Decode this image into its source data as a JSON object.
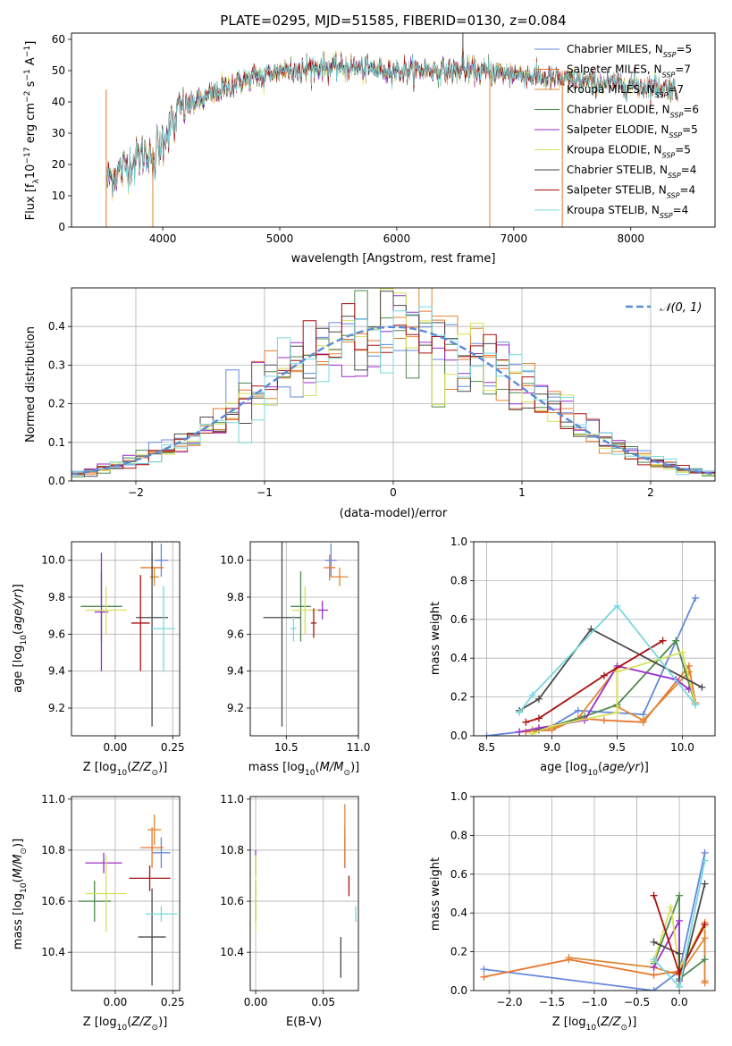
{
  "figure": {
    "series_names": [
      "Chabrier MILES",
      "Salpeter MILES",
      "Kroupa MILES",
      "Chabrier ELODIE",
      "Salpeter ELODIE",
      "Kroupa ELODIE",
      "Chabrier STELIB",
      "Salpeter STELIB",
      "Kroupa STELIB"
    ],
    "nssp": [
      5,
      7,
      7,
      6,
      5,
      5,
      4,
      4,
      4
    ],
    "colors": {
      "Chabrier MILES": "#6688dd",
      "Salpeter MILES": "#e8752d",
      "Kroupa MILES": "#dd8833",
      "Chabrier ELODIE": "#4d8a4d",
      "Salpeter ELODIE": "#9a2ec8",
      "Kroupa ELODIE": "#d6e05a",
      "Chabrier STELIB": "#4a4a4a",
      "Salpeter STELIB": "#aa1111",
      "Kroupa STELIB": "#77d8dd"
    }
  },
  "chart_data": [
    {
      "id": "spectrum",
      "type": "line",
      "title": "PLATE=0295, MJD=51585, FIBERID=0130, z=0.084",
      "xlabel": "wavelength [Angstrom, rest frame]",
      "ylabel": "Flux [f",
      "xlim": [
        3220,
        8720
      ],
      "ylim": [
        0,
        62
      ],
      "xticks": [
        4000,
        5000,
        6000,
        7000,
        8000
      ],
      "yticks": [
        0,
        10,
        20,
        30,
        40,
        50,
        60
      ],
      "continuum": {
        "x": [
          3520,
          3700,
          3900,
          4000,
          4150,
          4300,
          4500,
          4700,
          5000,
          5300,
          5600,
          6000,
          6300,
          6600,
          7000,
          7400,
          7800,
          8200,
          8400
        ],
        "y": [
          15,
          20,
          25,
          28,
          38,
          40,
          44,
          47,
          50,
          51,
          51,
          50,
          50,
          50,
          49,
          47,
          46,
          45,
          44
        ]
      },
      "spikes": [
        {
          "x": 3517,
          "y": 0,
          "series": "Salpeter MILES"
        },
        {
          "x": 3915,
          "y": 0,
          "series": "Kroupa MILES"
        },
        {
          "x": 6795,
          "y": 0,
          "series": "Kroupa MILES"
        },
        {
          "x": 7415,
          "y": 0,
          "series": "Salpeter MILES"
        },
        {
          "x": 6565,
          "y": 62,
          "series": "Chabrier STELIB"
        }
      ]
    },
    {
      "id": "residuals",
      "type": "histogram",
      "xlabel": "(data-model)/error",
      "ylabel": "Normed distribution",
      "xlim": [
        -2.5,
        2.5
      ],
      "ylim": [
        0,
        0.5
      ],
      "xticks": [
        -2,
        -1,
        0,
        1,
        2
      ],
      "yticks": [
        0.0,
        0.1,
        0.2,
        0.3,
        0.4
      ],
      "bin_edges": [
        -2.5,
        -2.4,
        -2.3,
        -2.2,
        -2.1,
        -2.0,
        -1.9,
        -1.8,
        -1.7,
        -1.6,
        -1.5,
        -1.4,
        -1.3,
        -1.2,
        -1.1,
        -1.0,
        -0.9,
        -0.8,
        -0.7,
        -0.6,
        -0.5,
        -0.4,
        -0.3,
        -0.2,
        -0.1,
        0.0,
        0.1,
        0.2,
        0.3,
        0.4,
        0.5,
        0.6,
        0.7,
        0.8,
        0.9,
        1.0,
        1.1,
        1.2,
        1.3,
        1.4,
        1.5,
        1.6,
        1.7,
        1.8,
        1.9,
        2.0,
        2.1,
        2.2,
        2.3,
        2.4,
        2.5
      ],
      "gaussian_label": "𝒩(0, 1)",
      "gaussian_color": "#5b8ad6"
    },
    {
      "id": "age_vs_Z",
      "type": "errorbar",
      "xlabel": "Z [log10(Z/Z⊙)]",
      "ylabel": "age  [log10(age/yr)]",
      "xlim": [
        -0.19,
        0.28
      ],
      "ylim": [
        9.05,
        10.1
      ],
      "xticks": [
        0.0,
        0.25
      ],
      "xticklabels": [
        "0.00",
        "0.25"
      ],
      "yticks": [
        9.2,
        9.4,
        9.6,
        9.8,
        10.0
      ],
      "points": [
        {
          "series": "Chabrier MILES",
          "x": 0.2,
          "y": 10.0,
          "xerr": 0.03,
          "yerr": 0.09
        },
        {
          "series": "Salpeter MILES",
          "x": 0.16,
          "y": 9.96,
          "xerr": 0.05,
          "yerr": 0.07
        },
        {
          "series": "Kroupa MILES",
          "x": 0.17,
          "y": 9.91,
          "xerr": 0.02,
          "yerr": 0.05
        },
        {
          "series": "Chabrier ELODIE",
          "x": -0.06,
          "y": 9.75,
          "xerr": 0.09,
          "yerr": 0.19
        },
        {
          "series": "Salpeter ELODIE",
          "x": -0.06,
          "y": 9.72,
          "xerr": 0.03,
          "yerr": 0.32
        },
        {
          "series": "Kroupa ELODIE",
          "x": -0.04,
          "y": 9.73,
          "xerr": 0.09,
          "yerr": 0.13
        },
        {
          "series": "Chabrier STELIB",
          "x": 0.16,
          "y": 9.69,
          "xerr": 0.07,
          "yerr": 0.59
        },
        {
          "series": "Salpeter STELIB",
          "x": 0.11,
          "y": 9.66,
          "xerr": 0.04,
          "yerr": 0.26
        },
        {
          "series": "Kroupa STELIB",
          "x": 0.21,
          "y": 9.63,
          "xerr": 0.05,
          "yerr": 0.23
        }
      ]
    },
    {
      "id": "age_vs_mass",
      "type": "errorbar",
      "xlabel": "mass [log10(M/M⊙)]",
      "ylabel": "",
      "xlim": [
        10.25,
        11.0
      ],
      "ylim": [
        9.05,
        10.1
      ],
      "xticks": [
        10.5,
        11.0
      ],
      "xticklabels": [
        "10.5",
        "11.0"
      ],
      "yticks": [
        9.2,
        9.4,
        9.6,
        9.8,
        10.0
      ],
      "points": [
        {
          "series": "Chabrier MILES",
          "x": 10.81,
          "y": 10.0,
          "xerr": 0.04,
          "yerr": 0.09
        },
        {
          "series": "Salpeter MILES",
          "x": 10.8,
          "y": 9.96,
          "xerr": 0.04,
          "yerr": 0.07
        },
        {
          "series": "Kroupa MILES",
          "x": 10.87,
          "y": 9.91,
          "xerr": 0.06,
          "yerr": 0.05
        },
        {
          "series": "Chabrier ELODIE",
          "x": 10.6,
          "y": 9.75,
          "xerr": 0.07,
          "yerr": 0.19
        },
        {
          "series": "Salpeter ELODIE",
          "x": 10.75,
          "y": 9.73,
          "xerr": 0.04,
          "yerr": 0.05
        },
        {
          "series": "Kroupa ELODIE",
          "x": 10.63,
          "y": 9.73,
          "xerr": 0.09,
          "yerr": 0.13
        },
        {
          "series": "Chabrier STELIB",
          "x": 10.47,
          "y": 9.69,
          "xerr": 0.13,
          "yerr": 0.59
        },
        {
          "series": "Salpeter STELIB",
          "x": 10.69,
          "y": 9.66,
          "xerr": 0.02,
          "yerr": 0.08
        },
        {
          "series": "Kroupa STELIB",
          "x": 10.55,
          "y": 9.63,
          "xerr": 0.02,
          "yerr": 0.07
        }
      ]
    },
    {
      "id": "weight_vs_age",
      "type": "line",
      "xlabel": "age  [log10(age/yr)]",
      "ylabel": "mass weight",
      "xlim": [
        8.4,
        10.25
      ],
      "ylim": [
        0,
        1
      ],
      "xticks": [
        8.5,
        9.0,
        9.5,
        10.0
      ],
      "xticklabels": [
        "8.5",
        "9.0",
        "9.5",
        "10.0"
      ],
      "yticks": [
        0.0,
        0.2,
        0.4,
        0.6,
        0.8,
        1.0
      ],
      "series": [
        {
          "name": "Chabrier MILES",
          "x": [
            8.5,
            8.75,
            9.0,
            9.2,
            9.7,
            10.1
          ],
          "y": [
            0.0,
            0.02,
            0.05,
            0.13,
            0.11,
            0.71
          ]
        },
        {
          "name": "Salpeter MILES",
          "x": [
            8.8,
            9.0,
            9.2,
            9.4,
            9.7,
            10.05,
            10.1
          ],
          "y": [
            0.02,
            0.03,
            0.09,
            0.08,
            0.07,
            0.36,
            0.17
          ]
        },
        {
          "name": "Kroupa MILES",
          "x": [
            8.85,
            9.0,
            9.2,
            9.5,
            9.5,
            9.7,
            10.05
          ],
          "y": [
            0.03,
            0.04,
            0.09,
            0.35,
            0.15,
            0.08,
            0.33
          ]
        },
        {
          "name": "Chabrier ELODIE",
          "x": [
            8.9,
            9.25,
            9.5,
            9.95,
            10.1
          ],
          "y": [
            0.03,
            0.1,
            0.16,
            0.49,
            0.16
          ]
        },
        {
          "name": "Salpeter ELODIE",
          "x": [
            8.75,
            8.9,
            9.25,
            9.5,
            9.95,
            10.05
          ],
          "y": [
            0.02,
            0.04,
            0.08,
            0.36,
            0.29,
            0.24
          ]
        },
        {
          "name": "Kroupa ELODIE",
          "x": [
            8.85,
            9.0,
            9.5,
            9.5,
            10.0,
            10.1
          ],
          "y": [
            0.01,
            0.05,
            0.12,
            0.33,
            0.43,
            0.16
          ]
        },
        {
          "name": "Chabrier STELIB",
          "x": [
            8.75,
            8.9,
            9.3,
            10.15
          ],
          "y": [
            0.13,
            0.19,
            0.55,
            0.25
          ]
        },
        {
          "name": "Salpeter STELIB",
          "x": [
            8.8,
            8.9,
            9.4,
            9.85
          ],
          "y": [
            0.07,
            0.09,
            0.31,
            0.49
          ]
        },
        {
          "name": "Kroupa STELIB",
          "x": [
            8.75,
            8.85,
            9.5,
            10.1
          ],
          "y": [
            0.12,
            0.21,
            0.67,
            0.16
          ]
        }
      ]
    },
    {
      "id": "mass_vs_Z",
      "type": "errorbar",
      "xlabel": "Z [log10(Z/Z⊙)]",
      "ylabel": "mass [log10(M/M⊙)]",
      "xlim": [
        -0.19,
        0.28
      ],
      "ylim": [
        10.25,
        11.01
      ],
      "xticks": [
        0.0,
        0.25
      ],
      "xticklabels": [
        "0.00",
        "0.25"
      ],
      "yticks": [
        10.4,
        10.6,
        10.8,
        11.0
      ],
      "points": [
        {
          "series": "Chabrier MILES",
          "x": 0.2,
          "y": 10.79,
          "xerr": 0.04,
          "yerr": 0.06
        },
        {
          "series": "Salpeter MILES",
          "x": 0.16,
          "y": 10.81,
          "xerr": 0.05,
          "yerr": 0.08
        },
        {
          "series": "Kroupa MILES",
          "x": 0.17,
          "y": 10.88,
          "xerr": 0.03,
          "yerr": 0.06
        },
        {
          "series": "Chabrier ELODIE",
          "x": -0.09,
          "y": 10.6,
          "xerr": 0.07,
          "yerr": 0.08
        },
        {
          "series": "Salpeter ELODIE",
          "x": -0.05,
          "y": 10.75,
          "xerr": 0.08,
          "yerr": 0.04
        },
        {
          "series": "Kroupa ELODIE",
          "x": -0.04,
          "y": 10.63,
          "xerr": 0.09,
          "yerr": 0.15
        },
        {
          "series": "Chabrier STELIB",
          "x": 0.16,
          "y": 10.46,
          "xerr": 0.06,
          "yerr": 0.19
        },
        {
          "series": "Salpeter STELIB",
          "x": 0.15,
          "y": 10.69,
          "xerr": 0.09,
          "yerr": 0.05
        },
        {
          "series": "Kroupa STELIB",
          "x": 0.2,
          "y": 10.55,
          "xerr": 0.07,
          "yerr": 0.03
        }
      ]
    },
    {
      "id": "mass_vs_EBV",
      "type": "errorbar",
      "xlabel": "E(B-V)",
      "ylabel": "",
      "xlim": [
        -0.004,
        0.076
      ],
      "ylim": [
        10.25,
        11.01
      ],
      "xticks": [
        0.0,
        0.05
      ],
      "xticklabels": [
        "0.00",
        "0.05"
      ],
      "yticks": [
        10.4,
        10.6,
        10.8,
        11.0
      ],
      "points": [
        {
          "series": "Chabrier MILES",
          "x": 0.066,
          "y": 10.79,
          "xerr": 0,
          "yerr": 0.06
        },
        {
          "series": "Salpeter MILES",
          "x": 0.066,
          "y": 10.81,
          "xerr": 0,
          "yerr": 0.08
        },
        {
          "series": "Kroupa MILES",
          "x": 0.066,
          "y": 10.88,
          "xerr": 0,
          "yerr": 0.1
        },
        {
          "series": "Chabrier ELODIE",
          "x": 0.0,
          "y": 10.6,
          "xerr": 0,
          "yerr": 0.08
        },
        {
          "series": "Salpeter ELODIE",
          "x": 0.0,
          "y": 10.75,
          "xerr": 0,
          "yerr": 0.05
        },
        {
          "series": "Kroupa ELODIE",
          "x": 0.0,
          "y": 10.63,
          "xerr": 0,
          "yerr": 0.15
        },
        {
          "series": "Chabrier STELIB",
          "x": 0.063,
          "y": 10.38,
          "xerr": 0,
          "yerr": 0.08
        },
        {
          "series": "Salpeter STELIB",
          "x": 0.069,
          "y": 10.66,
          "xerr": 0,
          "yerr": 0.04
        },
        {
          "series": "Kroupa STELIB",
          "x": 0.074,
          "y": 10.55,
          "xerr": 0,
          "yerr": 0.03
        }
      ]
    },
    {
      "id": "weight_vs_Z",
      "type": "line",
      "xlabel": "Z [log10(Z/Z⊙)]",
      "ylabel": "mass weight",
      "xlim": [
        -2.42,
        0.42
      ],
      "ylim": [
        0,
        1
      ],
      "xticks": [
        -2.0,
        -1.5,
        -1.0,
        -0.5,
        0.0
      ],
      "xticklabels": [
        "−2.0",
        "−1.5",
        "−1.0",
        "−0.5",
        "0.0"
      ],
      "yticks": [
        0.0,
        0.2,
        0.4,
        0.6,
        0.8,
        1.0
      ],
      "series": [
        {
          "name": "Chabrier MILES",
          "x": [
            -2.3,
            -0.3,
            0.0,
            0.3
          ],
          "y": [
            0.11,
            0.0,
            0.1,
            0.71
          ]
        },
        {
          "name": "Salpeter MILES",
          "x": [
            -2.3,
            -1.3,
            -0.3,
            0.0,
            0.3,
            0.3
          ],
          "y": [
            0.07,
            0.16,
            0.08,
            0.1,
            0.35,
            0.04
          ]
        },
        {
          "name": "Kroupa MILES",
          "x": [
            -1.3,
            -0.3,
            0.0,
            0.3,
            0.3
          ],
          "y": [
            0.17,
            0.12,
            0.08,
            0.27,
            0.05
          ]
        },
        {
          "name": "Chabrier ELODIE",
          "x": [
            -0.3,
            0.0,
            0.0,
            0.3
          ],
          "y": [
            0.14,
            0.49,
            0.06,
            0.16
          ]
        },
        {
          "name": "Salpeter ELODIE",
          "x": [
            -0.3,
            0.0,
            0.0
          ],
          "y": [
            0.12,
            0.36,
            0.05
          ]
        },
        {
          "name": "Kroupa ELODIE",
          "x": [
            -0.3,
            -0.1,
            0.0,
            0.3
          ],
          "y": [
            0.15,
            0.43,
            0.12,
            0.33
          ]
        },
        {
          "name": "Chabrier STELIB",
          "x": [
            -0.3,
            0.0,
            0.0,
            0.3
          ],
          "y": [
            0.25,
            0.19,
            0.02,
            0.55
          ]
        },
        {
          "name": "Salpeter STELIB",
          "x": [
            -0.3,
            0.0,
            0.3
          ],
          "y": [
            0.49,
            0.09,
            0.34
          ]
        },
        {
          "name": "Kroupa STELIB",
          "x": [
            -0.3,
            0.0,
            0.3
          ],
          "y": [
            0.16,
            0.02,
            0.67
          ]
        }
      ]
    }
  ]
}
